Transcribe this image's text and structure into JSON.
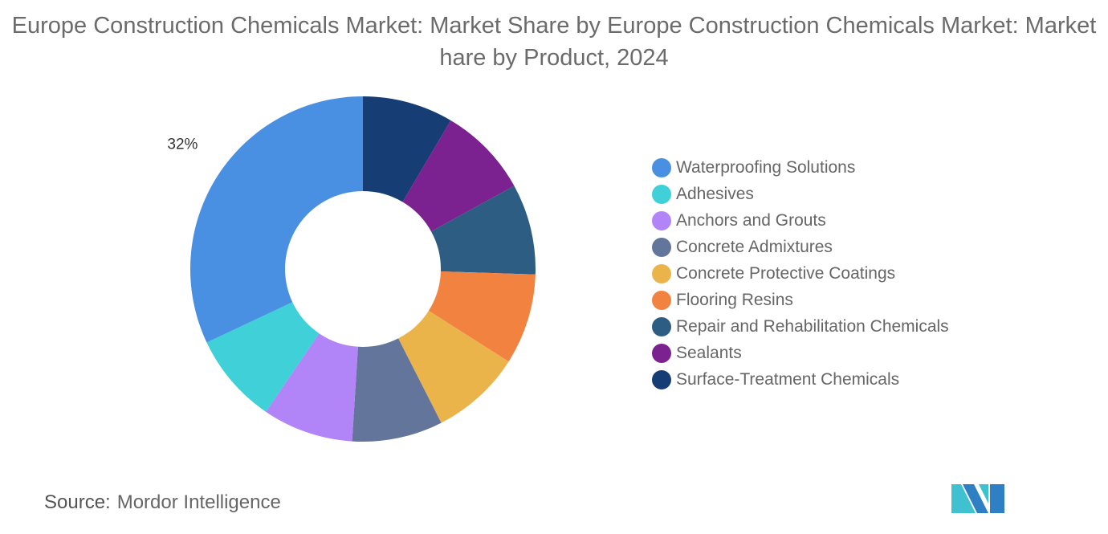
{
  "chart_data": {
    "type": "pie",
    "title": "Europe Construction Chemicals Market: Market Share by Europe Construction Chemicals Market: Market hare by Product, 2024",
    "categories": [
      "Waterproofing Solutions",
      "Adhesives",
      "Anchors and Grouts",
      "Concrete Admixtures",
      "Concrete Protective Coatings",
      "Flooring Resins",
      "Repair and Rehabilitation Chemicals",
      "Sealants",
      "Surface-Treatment Chemicals"
    ],
    "values": [
      32,
      8.5,
      8.5,
      8.5,
      8.5,
      8.5,
      8.5,
      8.5,
      8.5
    ],
    "colors": [
      "#4a90e2",
      "#3fd0d8",
      "#b184f7",
      "#63759a",
      "#eab44a",
      "#f28240",
      "#2e5d84",
      "#7c2190",
      "#163e74"
    ],
    "data_labels": [
      "32%",
      "",
      "",
      "",
      "",
      "",
      "",
      "",
      ""
    ],
    "donut": true,
    "legend_position": "right"
  },
  "footer": {
    "source_label": "Source:",
    "source": "Mordor Intelligence"
  }
}
